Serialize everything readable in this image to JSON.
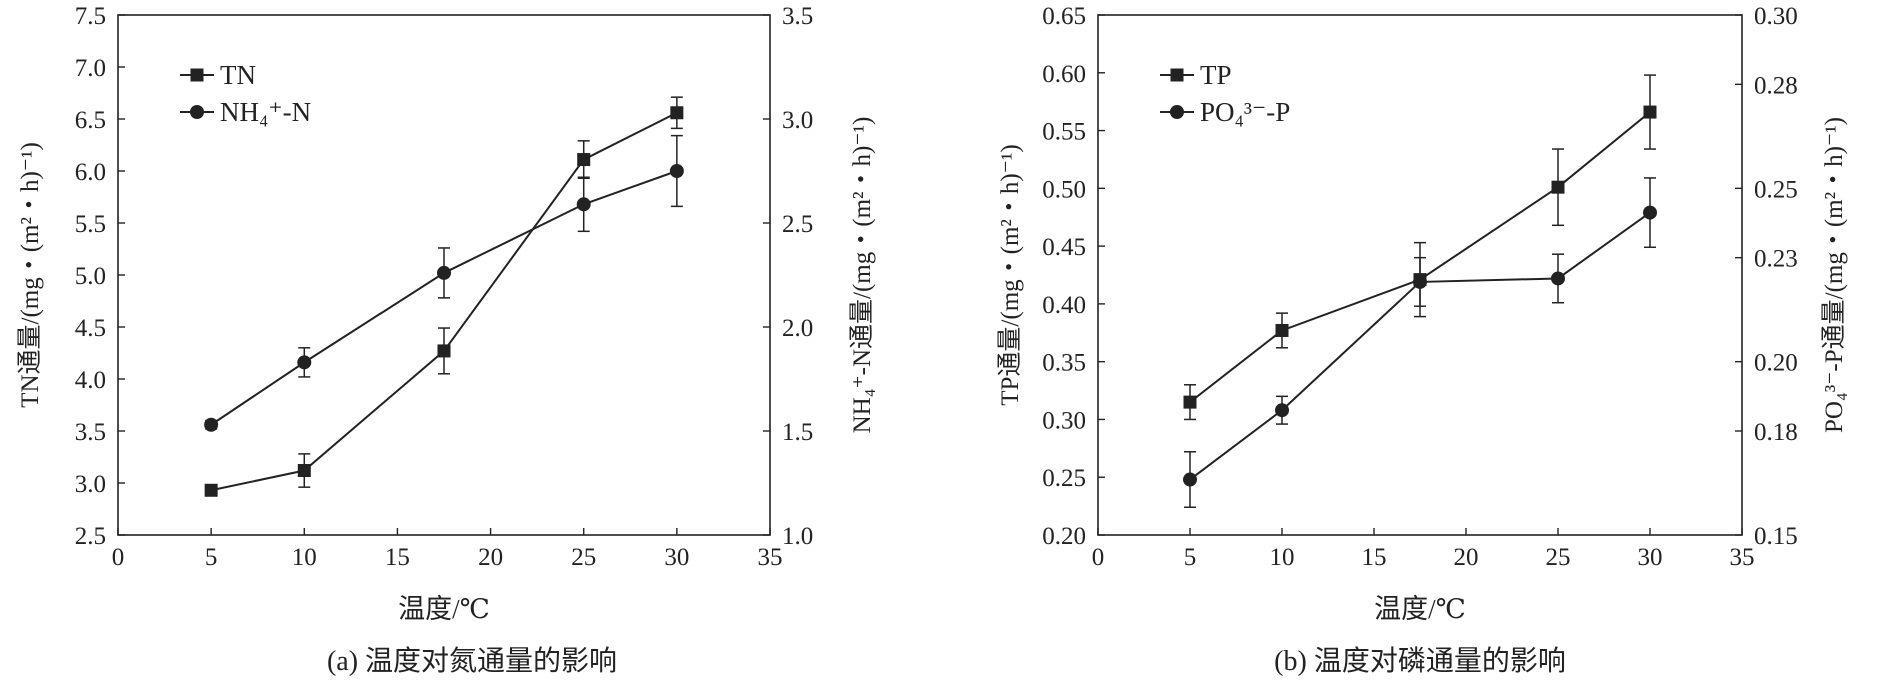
{
  "chart_data": [
    {
      "id": "a",
      "type": "line",
      "caption": "(a) 温度对氮通量的影响",
      "xlabel": "温度/℃",
      "ylabel_left": "TN通量/(mg・(m²・h)⁻¹)",
      "ylabel_right": "NH₄⁺-N通量/(mg・(m²・h)⁻¹)",
      "xlim": [
        0,
        35
      ],
      "xticks": [
        "0",
        "5",
        "10",
        "15",
        "20",
        "25",
        "30",
        "35"
      ],
      "ylim_left": [
        2.5,
        7.5
      ],
      "yticks_left": [
        "2.5",
        "3.0",
        "3.5",
        "4.0",
        "4.5",
        "5.0",
        "5.5",
        "6.0",
        "6.5",
        "7.0",
        "7.5"
      ],
      "ylim_right": [
        1.0,
        3.5
      ],
      "yticks_right": [
        "1.0",
        "1.5",
        "2.0",
        "2.5",
        "3.0",
        "3.5"
      ],
      "legend_position": "top-left",
      "series": [
        {
          "name": "TN",
          "marker": "square",
          "axis": "left",
          "x": [
            5,
            10,
            17.5,
            25,
            30
          ],
          "y": [
            2.93,
            3.12,
            4.27,
            6.11,
            6.56
          ],
          "err": [
            0.03,
            0.16,
            0.22,
            0.18,
            0.15
          ]
        },
        {
          "name": "NH₄⁺-N",
          "marker": "circle",
          "axis": "right",
          "x": [
            5,
            10,
            17.5,
            25,
            30
          ],
          "y": [
            1.53,
            1.83,
            2.26,
            2.59,
            2.75
          ],
          "err": [
            0.02,
            0.07,
            0.12,
            0.13,
            0.17
          ]
        }
      ]
    },
    {
      "id": "b",
      "type": "line",
      "caption": "(b) 温度对磷通量的影响",
      "xlabel": "温度/℃",
      "ylabel_left": "TP通量/(mg・(m²・h)⁻¹)",
      "ylabel_right": "PO₄³⁻-P通量/(mg・(m²・h)⁻¹)",
      "xlim": [
        0,
        35
      ],
      "xticks": [
        "0",
        "5",
        "10",
        "15",
        "20",
        "25",
        "30",
        "35"
      ],
      "ylim_left": [
        0.2,
        0.65
      ],
      "yticks_left": [
        "0.20",
        "0.25",
        "0.30",
        "0.35",
        "0.40",
        "0.45",
        "0.50",
        "0.55",
        "0.60",
        "0.65"
      ],
      "ylim_right": [
        0.15,
        0.3
      ],
      "yticks_right": [
        "0.15",
        "0.18",
        "0.20",
        "0.23",
        "0.25",
        "0.28",
        "0.30"
      ],
      "legend_position": "top-left",
      "series": [
        {
          "name": "TP",
          "marker": "square",
          "axis": "left",
          "x": [
            5,
            10,
            17.5,
            25,
            30
          ],
          "y": [
            0.315,
            0.377,
            0.421,
            0.501,
            0.566
          ],
          "err": [
            0.015,
            0.015,
            0.032,
            0.033,
            0.032
          ]
        },
        {
          "name": "PO₄³⁻-P",
          "marker": "circle",
          "axis": "right",
          "x": [
            5,
            10,
            17.5,
            25,
            30
          ],
          "y": [
            0.166,
            0.186,
            0.223,
            0.224,
            0.243
          ],
          "err": [
            0.008,
            0.004,
            0.007,
            0.007,
            0.01
          ]
        }
      ]
    }
  ]
}
